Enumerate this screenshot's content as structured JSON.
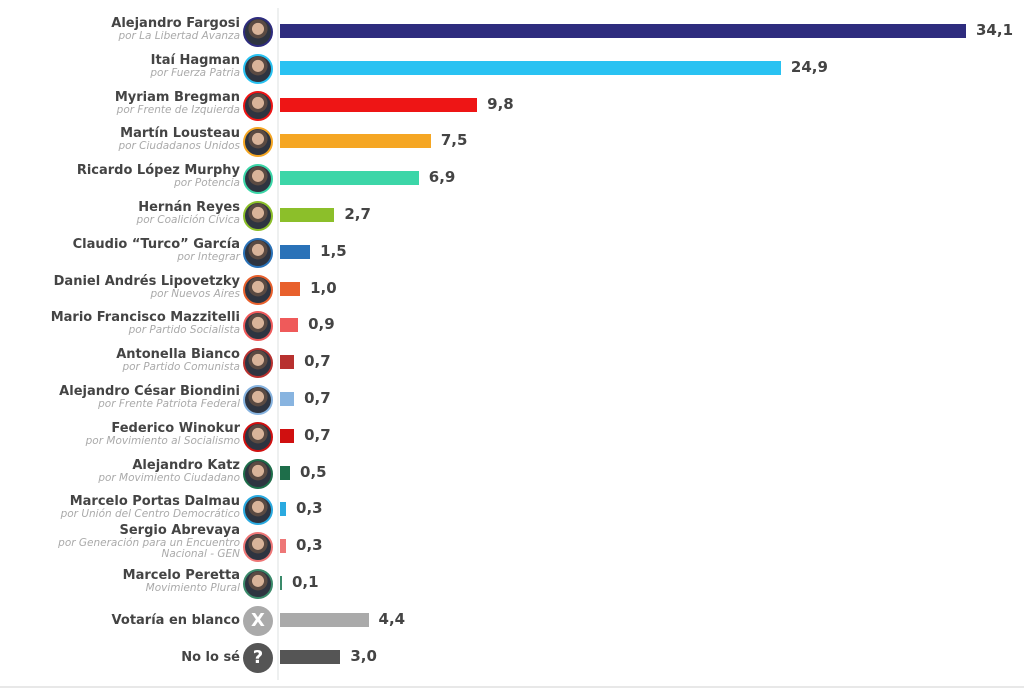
{
  "chart_data": {
    "type": "bar",
    "orientation": "horizontal",
    "grid": false,
    "xlim": [
      0,
      34.1
    ],
    "categories": [
      {
        "name": "Alejandro Fargosi",
        "party": "por La Libertad Avanza",
        "value": 34.1,
        "label": "34,1",
        "color": "#2e2c7e"
      },
      {
        "name": "Itaí Hagman",
        "party": "por Fuerza Patria",
        "value": 24.9,
        "label": "24,9",
        "color": "#29c2f2"
      },
      {
        "name": "Myriam Bregman",
        "party": "por Frente de Izquierda",
        "value": 9.8,
        "label": "9,8",
        "color": "#ee1515"
      },
      {
        "name": "Martín Lousteau",
        "party": "por Ciudadanos Unidos",
        "value": 7.5,
        "label": "7,5",
        "color": "#f5a623"
      },
      {
        "name": "Ricardo López Murphy",
        "party": "por Potencia",
        "value": 6.9,
        "label": "6,9",
        "color": "#3cd6a8"
      },
      {
        "name": "Hernán Reyes",
        "party": "por Coalición Cívica",
        "value": 2.7,
        "label": "2,7",
        "color": "#8cbf2a"
      },
      {
        "name": "Claudio “Turco” García",
        "party": "por Integrar",
        "value": 1.5,
        "label": "1,5",
        "color": "#2a72b8"
      },
      {
        "name": "Daniel Andrés Lipovetzky",
        "party": "por Nuevos Aires",
        "value": 1.0,
        "label": "1,0",
        "color": "#e8602c"
      },
      {
        "name": "Mario Francisco Mazzitelli",
        "party": "por Partido Socialista",
        "value": 0.9,
        "label": "0,9",
        "color": "#ef5a5a"
      },
      {
        "name": "Antonella Bianco",
        "party": "por Partido Comunista",
        "value": 0.7,
        "label": "0,7",
        "color": "#b8312f"
      },
      {
        "name": "Alejandro César Biondini",
        "party": "por Frente Patriota Federal",
        "value": 0.7,
        "label": "0,7",
        "color": "#88b4e0"
      },
      {
        "name": "Federico Winokur",
        "party": "por Movimiento al Socialismo",
        "value": 0.7,
        "label": "0,7",
        "color": "#d01010"
      },
      {
        "name": "Alejandro Katz",
        "party": "por Movimiento Ciudadano",
        "value": 0.5,
        "label": "0,5",
        "color": "#1e6e4a"
      },
      {
        "name": "Marcelo Portas Dalmau",
        "party": "por Unión del Centro Democrático",
        "value": 0.3,
        "label": "0,3",
        "color": "#2aaae0"
      },
      {
        "name": "Sergio Abrevaya",
        "party": "por Generación para un Encuentro Nacional - GEN",
        "value": 0.3,
        "label": "0,3",
        "color": "#ee7777"
      },
      {
        "name": "Marcelo Peretta",
        "party": "Movimiento Plural",
        "value": 0.1,
        "label": "0,1",
        "color": "#3a8a6a"
      },
      {
        "name": "Votaría en blanco",
        "party": "",
        "value": 4.4,
        "label": "4,4",
        "color": "#aaaaaa",
        "icon": "x-icon",
        "icon_text": "X"
      },
      {
        "name": "No lo sé",
        "party": "",
        "value": 3.0,
        "label": "3,0",
        "color": "#555555",
        "icon": "question-icon",
        "icon_text": "?"
      }
    ]
  }
}
